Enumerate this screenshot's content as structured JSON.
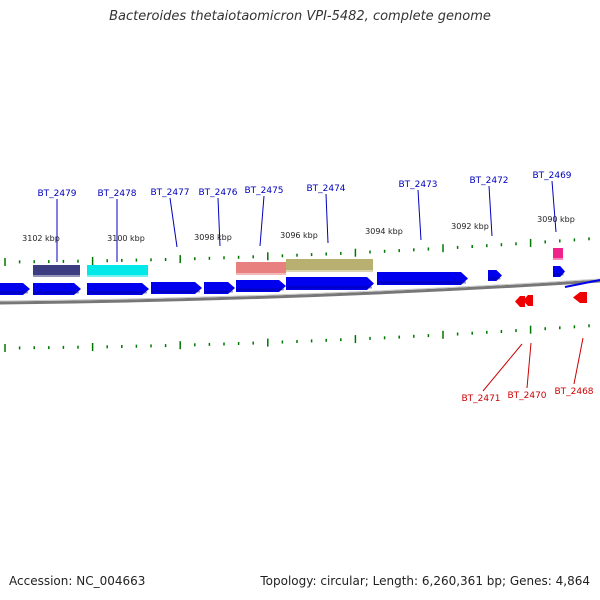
{
  "title": "Bacteroides thetaiotaomicron VPI-5482, complete genome",
  "footer": {
    "accession": "Accession: NC_004663",
    "summary": "Topology: circular; Length: 6,260,361 bp; Genes: 4,864"
  },
  "colors": {
    "forward_gene": "#0000ee",
    "reverse_gene": "#ee0000",
    "tick": "#007700",
    "backbone": "#888888",
    "label_forward": "#0000bb",
    "label_reverse": "#cc0000"
  },
  "kbp_labels": [
    "3102 kbp",
    "3100 kbp",
    "3098 kbp",
    "3096 kbp",
    "3094 kbp",
    "3092 kbp",
    "3090 kbp"
  ],
  "forward_genes": [
    "BT_2479",
    "BT_2478",
    "BT_2477",
    "BT_2476",
    "BT_2475",
    "BT_2474",
    "BT_2473",
    "BT_2472",
    "BT_2469"
  ],
  "reverse_genes": [
    "BT_2471",
    "BT_2470",
    "BT_2468"
  ],
  "features": [
    {
      "gene": "BT_2479",
      "color": "#3c3c80"
    },
    {
      "gene": "BT_2478",
      "color": "#00e8e8"
    },
    {
      "gene": "BT_2475",
      "color": "#e88080"
    },
    {
      "gene": "BT_2474",
      "color": "#b8b070"
    },
    {
      "gene": "BT_2469",
      "color": "#ee2288"
    }
  ]
}
